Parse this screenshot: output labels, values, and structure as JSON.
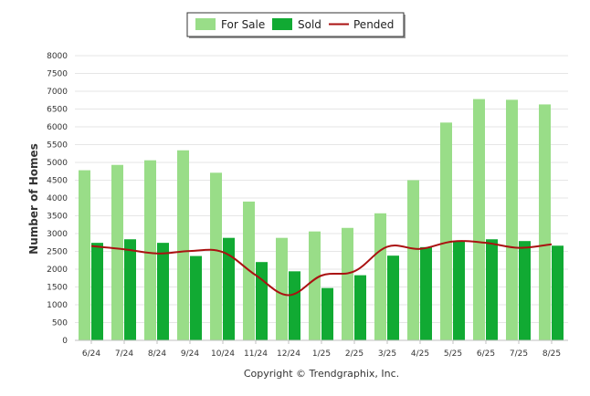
{
  "chart_data": {
    "type": "bar",
    "categories": [
      "6/24",
      "7/24",
      "8/24",
      "9/24",
      "10/24",
      "11/24",
      "12/24",
      "1/25",
      "2/25",
      "3/25",
      "4/25",
      "5/25",
      "6/25",
      "7/25",
      "8/25"
    ],
    "series": [
      {
        "name": "For Sale",
        "kind": "bar",
        "color": "#99dd88",
        "values": [
          4780,
          4930,
          5060,
          5340,
          4710,
          3900,
          2880,
          3060,
          3160,
          3570,
          4500,
          6120,
          6780,
          6760,
          6630
        ]
      },
      {
        "name": "Sold",
        "kind": "bar",
        "color": "#11aa33",
        "values": [
          2740,
          2840,
          2740,
          2370,
          2880,
          2200,
          1940,
          1470,
          1830,
          2380,
          2620,
          2780,
          2840,
          2790,
          2660
        ]
      },
      {
        "name": "Pended",
        "kind": "line",
        "color": "#aa1111",
        "values": [
          2650,
          2560,
          2440,
          2510,
          2480,
          1830,
          1270,
          1820,
          1940,
          2630,
          2570,
          2780,
          2740,
          2600,
          2700
        ]
      }
    ],
    "ylabel": "Number of Homes",
    "xlabel": "",
    "ylim": [
      0,
      8000
    ],
    "yticks": [
      0,
      500,
      1000,
      1500,
      2000,
      2500,
      3000,
      3500,
      4000,
      4500,
      5000,
      5500,
      6000,
      6500,
      7000,
      7500,
      8000
    ],
    "grid": true,
    "legend_position": "top-center"
  },
  "footer": {
    "copyright": "Copyright © Trendgraphix, Inc."
  }
}
